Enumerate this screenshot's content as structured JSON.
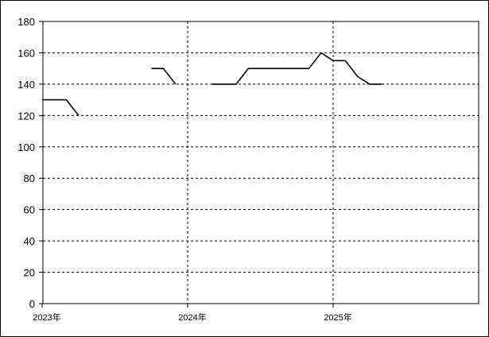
{
  "chart_data": {
    "type": "line",
    "title": "",
    "xlabel": "",
    "ylabel": "",
    "ylim": [
      0,
      180
    ],
    "yticks": [
      "0",
      "20",
      "40",
      "60",
      "80",
      "100",
      "120",
      "140",
      "160",
      "180"
    ],
    "xticks": [
      "2023年",
      "2024年",
      "2025年"
    ],
    "grid": true,
    "legend": "none",
    "line_color": "#000000",
    "series": [
      {
        "segments": [
          [
            [
              "2023-01",
              130
            ],
            [
              "2023-02",
              130
            ],
            [
              "2023-03",
              130
            ],
            [
              "2023-04",
              120
            ]
          ],
          [
            [
              "2023-10",
              150
            ],
            [
              "2023-11",
              150
            ],
            [
              "2023-12",
              140
            ]
          ],
          [
            [
              "2024-03",
              140
            ],
            [
              "2024-04",
              140
            ],
            [
              "2024-05",
              140
            ],
            [
              "2024-06",
              150
            ],
            [
              "2024-07",
              150
            ],
            [
              "2024-08",
              150
            ],
            [
              "2024-09",
              150
            ],
            [
              "2024-10",
              150
            ],
            [
              "2024-11",
              150
            ],
            [
              "2024-12",
              160
            ],
            [
              "2025-01",
              155
            ],
            [
              "2025-02",
              155
            ],
            [
              "2025-03",
              145
            ],
            [
              "2025-04",
              140
            ],
            [
              "2025-05",
              140
            ]
          ]
        ]
      }
    ]
  }
}
